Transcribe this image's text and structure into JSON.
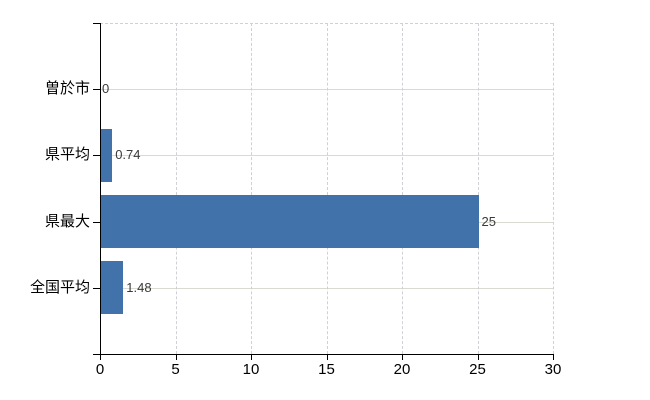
{
  "chart_data": {
    "type": "bar",
    "orientation": "horizontal",
    "title": "",
    "xlabel": "",
    "ylabel": "",
    "categories": [
      "曽於市",
      "県平均",
      "県最大",
      "全国平均"
    ],
    "values": [
      0,
      0.74,
      25,
      1.48
    ],
    "data_labels": [
      "0",
      "0.74",
      "25",
      "1.48"
    ],
    "xlim": [
      0,
      30
    ],
    "xticks": [
      0,
      5,
      10,
      15,
      20,
      25,
      30
    ],
    "legend": "none",
    "grid": "dashed vertical lines at x ticks; solid light horizontal line at each category center; dashed top and right plot border",
    "colors": {
      "bar": "#4272aa",
      "grid_vertical": "#d2d0d6",
      "grid_horizontal": "#d7dbd1",
      "axis": "#000000",
      "tick_label": "#000000",
      "category_label": "#000000",
      "data_label": "#3a3a3a",
      "background": "#ffffff"
    }
  }
}
